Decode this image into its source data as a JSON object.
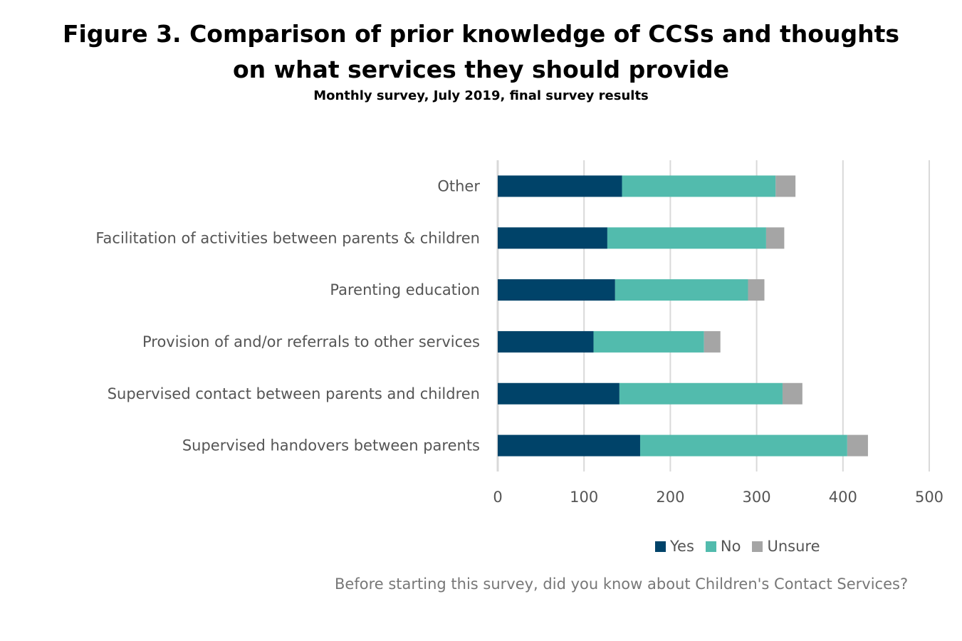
{
  "header": {
    "title_line1": "Figure 3. Comparison of prior knowledge of CCSs and thoughts",
    "title_line2": "on what services they should provide",
    "subtitle": "Monthly survey, July 2019, final survey results"
  },
  "chart_data": {
    "type": "bar",
    "orientation": "horizontal",
    "stacked": true,
    "categories": [
      "Other",
      "Facilitation of activities between parents & children",
      "Parenting education",
      "Provision of and/or referrals to other services",
      "Supervised contact between parents and children",
      "Supervised handovers between parents"
    ],
    "series": [
      {
        "name": "Yes",
        "color": "#004369",
        "values": [
          144,
          127,
          136,
          111,
          141,
          165
        ]
      },
      {
        "name": "No",
        "color": "#52BBAD",
        "values": [
          178,
          184,
          154,
          128,
          189,
          240
        ]
      },
      {
        "name": "Unsure",
        "color": "#A5A5A5",
        "values": [
          23,
          21,
          19,
          19,
          23,
          24
        ]
      }
    ],
    "xlim": [
      0,
      500
    ],
    "xticks": [
      "0",
      "100",
      "200",
      "300",
      "400",
      "500"
    ],
    "xlabel": "Before starting this survey, did you know about Children's Contact Services?",
    "grid": true,
    "legend_position": "bottom"
  }
}
